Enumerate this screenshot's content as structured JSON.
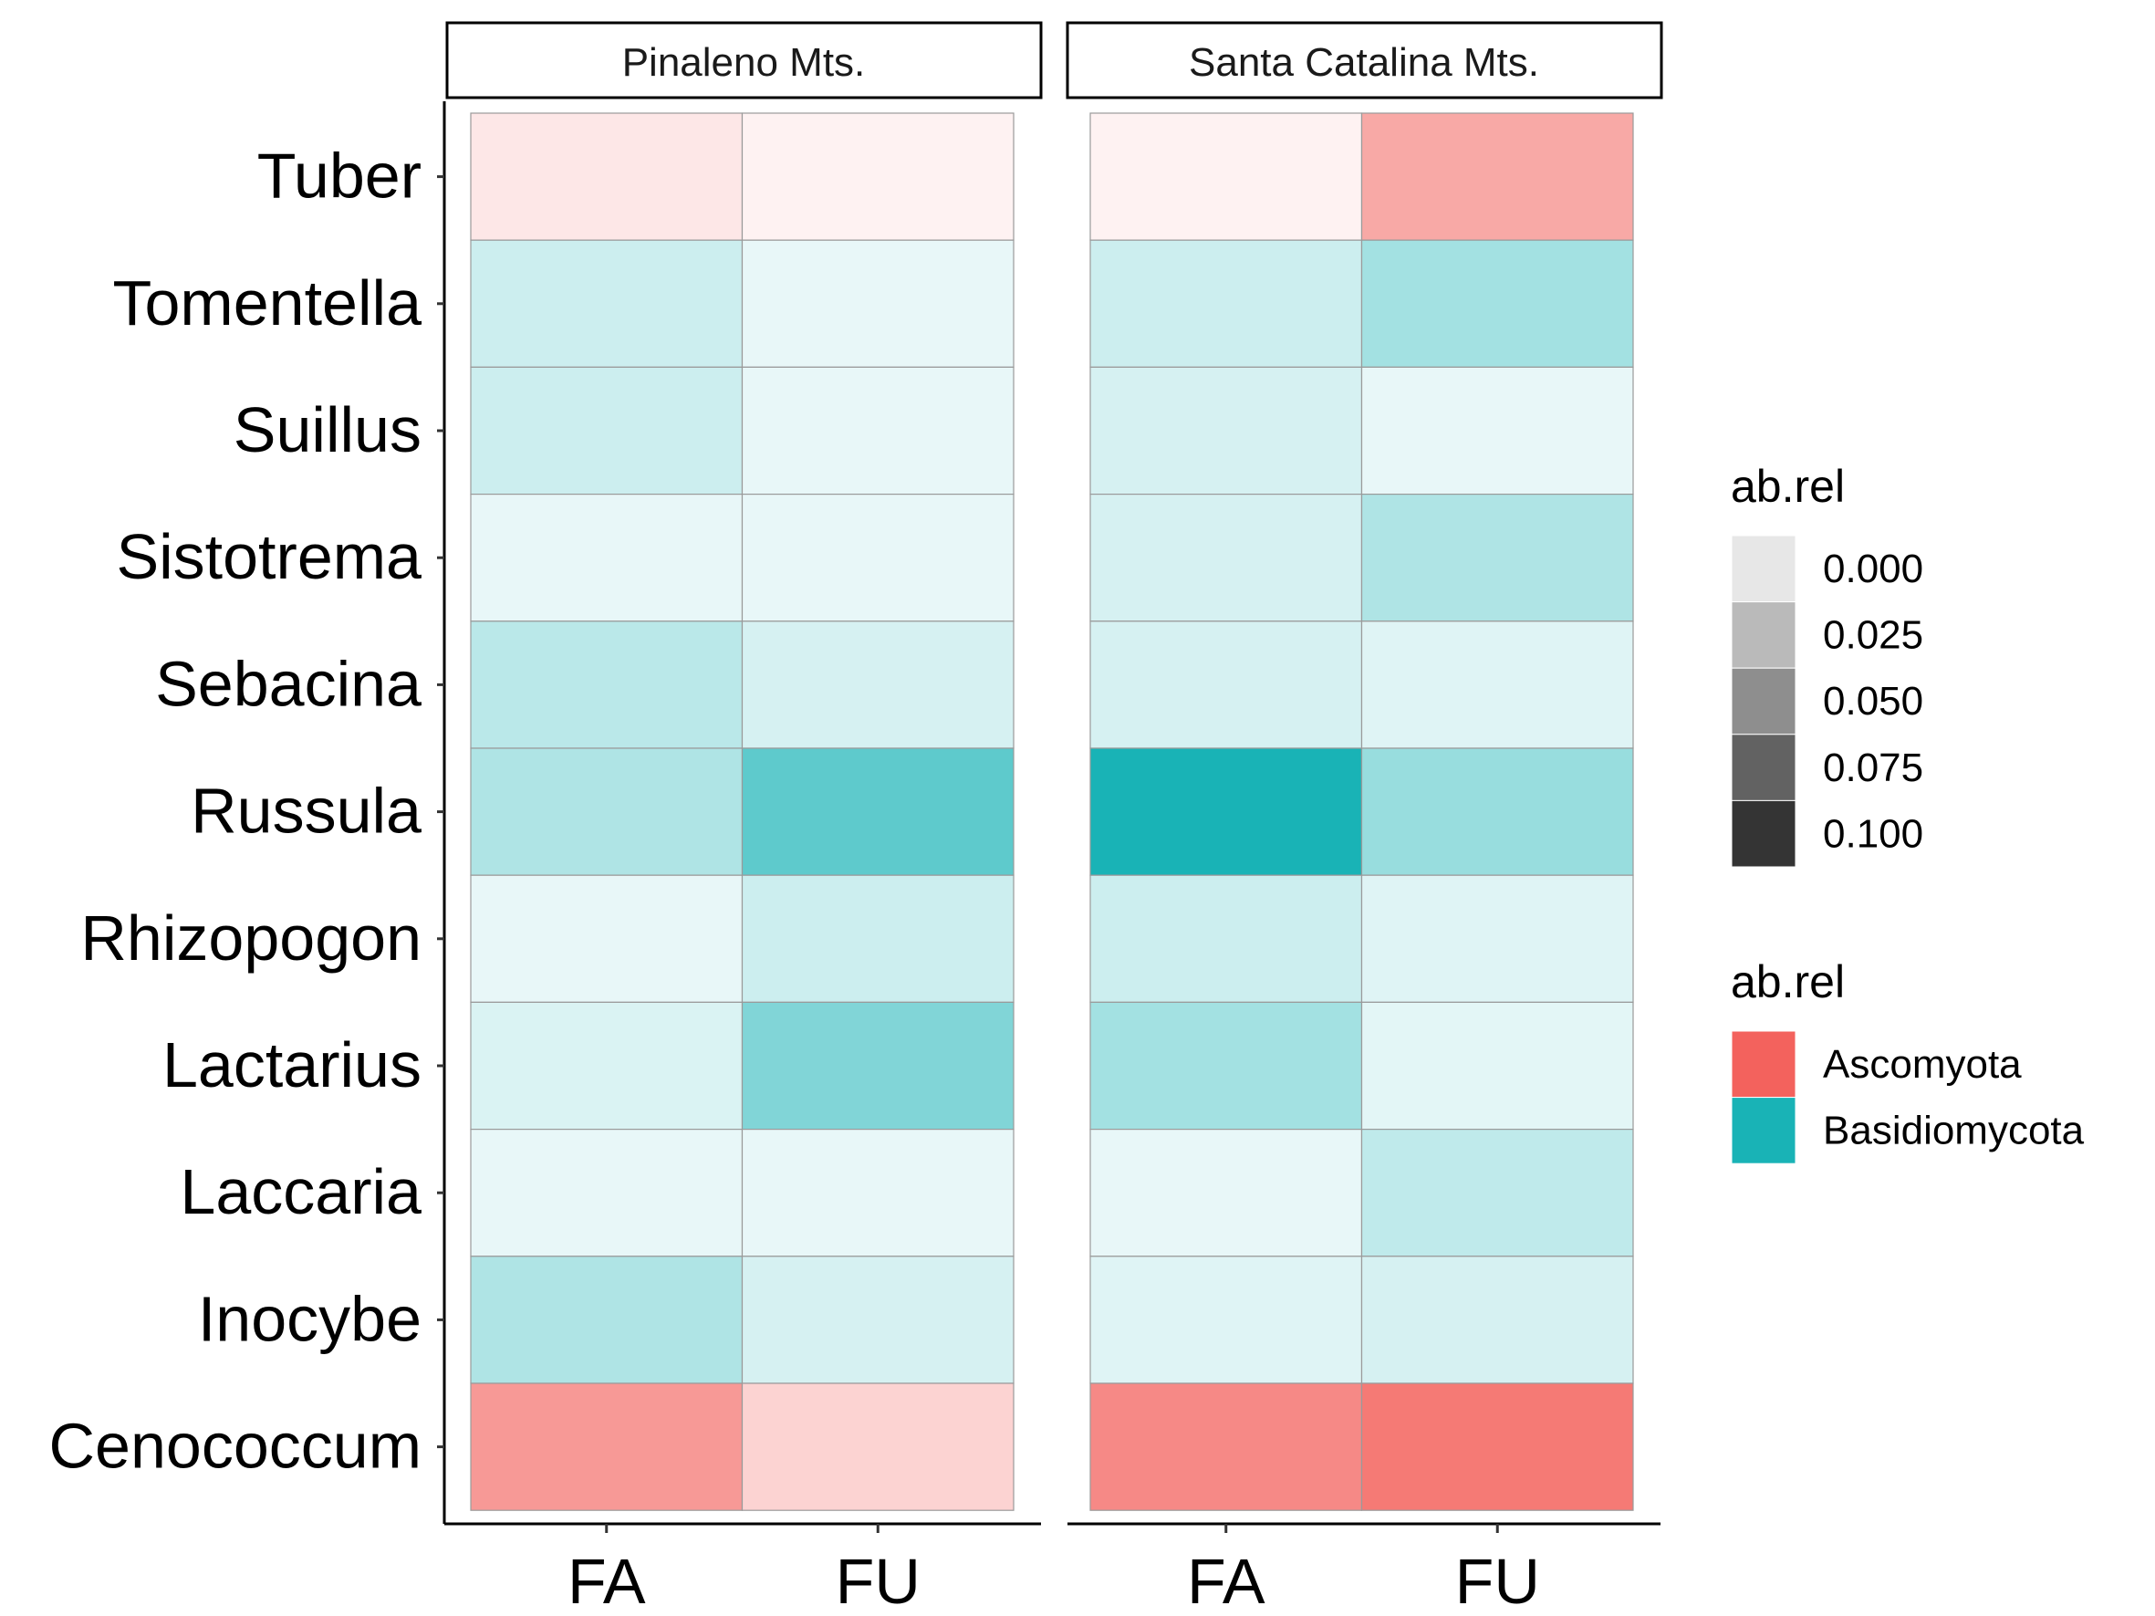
{
  "chart_data": {
    "type": "heatmap",
    "title": "",
    "xlabel": "",
    "ylabel": "",
    "facets": [
      "Pinaleno Mts.",
      "Santa Catalina Mts."
    ],
    "x_categories": [
      "FA",
      "FU"
    ],
    "y_categories": [
      "Tuber",
      "Tomentella",
      "Suillus",
      "Sistotrema",
      "Sebacina",
      "Russula",
      "Rhizopogon",
      "Lactarius",
      "Laccaria",
      "Inocybe",
      "Cenococcum"
    ],
    "phylum_by_genus": {
      "Tuber": "Ascomyota",
      "Tomentella": "Basidiomycota",
      "Suillus": "Basidiomycota",
      "Sistotrema": "Basidiomycota",
      "Sebacina": "Basidiomycota",
      "Russula": "Basidiomycota",
      "Rhizopogon": "Basidiomycota",
      "Lactarius": "Basidiomycota",
      "Laccaria": "Basidiomycota",
      "Inocybe": "Basidiomycota",
      "Cenococcum": "Ascomyota"
    },
    "values": {
      "Pinaleno Mts.": {
        "FA": [
          0.015,
          0.022,
          0.022,
          0.01,
          0.03,
          0.035,
          0.01,
          0.016,
          0.01,
          0.035,
          0.065
        ],
        "FU": [
          0.008,
          0.01,
          0.01,
          0.01,
          0.018,
          0.07,
          0.022,
          0.055,
          0.01,
          0.018,
          0.028
        ]
      },
      "Santa Catalina Mts.": {
        "FA": [
          0.008,
          0.022,
          0.018,
          0.018,
          0.018,
          0.1,
          0.022,
          0.04,
          0.01,
          0.014,
          0.075
        ],
        "FU": [
          0.055,
          0.04,
          0.01,
          0.035,
          0.014,
          0.045,
          0.014,
          0.012,
          0.028,
          0.018,
          0.085
        ]
      }
    },
    "legends": [
      {
        "title": "ab.rel",
        "kind": "gradient",
        "breaks": [
          "0.000",
          "0.025",
          "0.050",
          "0.075",
          "0.100"
        ],
        "colors": [
          "#e7e7e7",
          "#bababa",
          "#8e8e8e",
          "#626262",
          "#343434"
        ]
      },
      {
        "title": "ab.rel",
        "kind": "categorical",
        "entries": [
          {
            "label": "Ascomyota",
            "color": "#f3625d"
          },
          {
            "label": "Basidiomycota",
            "color": "#19b3b6"
          }
        ]
      }
    ],
    "scale_max": 0.1,
    "grid": false
  }
}
